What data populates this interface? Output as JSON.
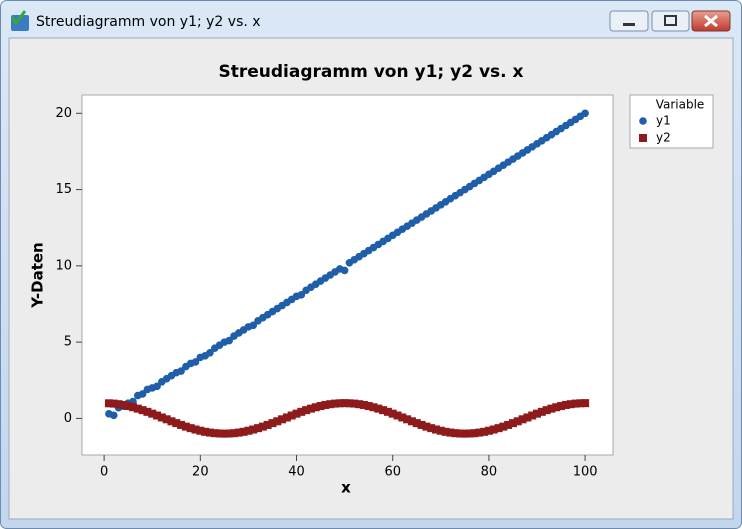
{
  "window": {
    "title": "Streudiagramm von y1; y2 vs. x"
  },
  "chart_data": {
    "type": "scatter",
    "title": "Streudiagramm von y1; y2 vs. x",
    "xlabel": "x",
    "ylabel": "Y-Daten",
    "legend_title": "Variable",
    "legend": "upper right outside",
    "xlim": [
      -4.6,
      105.8
    ],
    "ylim": [
      -2.4,
      21.2
    ],
    "xticks": [
      0,
      20,
      40,
      60,
      80,
      100
    ],
    "yticks": [
      0,
      5,
      10,
      15,
      20
    ],
    "x": [
      1,
      2,
      3,
      4,
      5,
      6,
      7,
      8,
      9,
      10,
      11,
      12,
      13,
      14,
      15,
      16,
      17,
      18,
      19,
      20,
      21,
      22,
      23,
      24,
      25,
      26,
      27,
      28,
      29,
      30,
      31,
      32,
      33,
      34,
      35,
      36,
      37,
      38,
      39,
      40,
      41,
      42,
      43,
      44,
      45,
      46,
      47,
      48,
      49,
      50,
      51,
      52,
      53,
      54,
      55,
      56,
      57,
      58,
      59,
      60,
      61,
      62,
      63,
      64,
      65,
      66,
      67,
      68,
      69,
      70,
      71,
      72,
      73,
      74,
      75,
      76,
      77,
      78,
      79,
      80,
      81,
      82,
      83,
      84,
      85,
      86,
      87,
      88,
      89,
      90,
      91,
      92,
      93,
      94,
      95,
      96,
      97,
      98,
      99,
      100
    ],
    "series": [
      {
        "name": "y1",
        "color": "#1f5ea8",
        "marker": "circle",
        "values": [
          0.3,
          0.2,
          0.7,
          0.8,
          1.0,
          1.1,
          1.5,
          1.6,
          1.9,
          2.0,
          2.1,
          2.4,
          2.6,
          2.8,
          3.0,
          3.1,
          3.4,
          3.6,
          3.7,
          4.0,
          4.1,
          4.3,
          4.6,
          4.8,
          5.0,
          5.1,
          5.4,
          5.6,
          5.8,
          6.0,
          6.1,
          6.4,
          6.6,
          6.8,
          7.0,
          7.2,
          7.4,
          7.6,
          7.8,
          8.0,
          8.1,
          8.4,
          8.6,
          8.8,
          9.0,
          9.2,
          9.4,
          9.6,
          9.8,
          9.7,
          10.2,
          10.4,
          10.6,
          10.8,
          11.0,
          11.2,
          11.4,
          11.6,
          11.8,
          12.0,
          12.2,
          12.4,
          12.6,
          12.8,
          13.0,
          13.2,
          13.4,
          13.6,
          13.8,
          14.0,
          14.2,
          14.4,
          14.6,
          14.8,
          15.0,
          15.2,
          15.4,
          15.6,
          15.8,
          16.0,
          16.2,
          16.4,
          16.6,
          16.8,
          17.0,
          17.2,
          17.4,
          17.6,
          17.8,
          18.0,
          18.2,
          18.4,
          18.6,
          18.8,
          19.0,
          19.2,
          19.4,
          19.6,
          19.8,
          20.0
        ]
      },
      {
        "name": "y2",
        "color": "#8e1b1b",
        "marker": "square",
        "values": [
          0.99,
          0.97,
          0.93,
          0.88,
          0.81,
          0.73,
          0.64,
          0.54,
          0.43,
          0.31,
          0.19,
          0.06,
          -0.06,
          -0.19,
          -0.31,
          -0.43,
          -0.54,
          -0.64,
          -0.73,
          -0.81,
          -0.88,
          -0.93,
          -0.97,
          -0.99,
          -1,
          -0.99,
          -0.97,
          -0.93,
          -0.88,
          -0.81,
          -0.73,
          -0.64,
          -0.54,
          -0.43,
          -0.31,
          -0.19,
          -0.06,
          0.06,
          0.19,
          0.31,
          0.43,
          0.54,
          0.64,
          0.73,
          0.81,
          0.88,
          0.93,
          0.97,
          0.99,
          1,
          0.99,
          0.97,
          0.93,
          0.88,
          0.81,
          0.73,
          0.64,
          0.54,
          0.43,
          0.31,
          0.19,
          0.06,
          -0.06,
          -0.19,
          -0.31,
          -0.43,
          -0.54,
          -0.64,
          -0.73,
          -0.81,
          -0.88,
          -0.93,
          -0.97,
          -0.99,
          -1,
          -0.99,
          -0.97,
          -0.93,
          -0.88,
          -0.81,
          -0.73,
          -0.64,
          -0.54,
          -0.43,
          -0.31,
          -0.19,
          -0.06,
          0.06,
          0.19,
          0.31,
          0.43,
          0.54,
          0.64,
          0.73,
          0.81,
          0.88,
          0.93,
          0.97,
          0.99,
          1
        ]
      }
    ]
  }
}
